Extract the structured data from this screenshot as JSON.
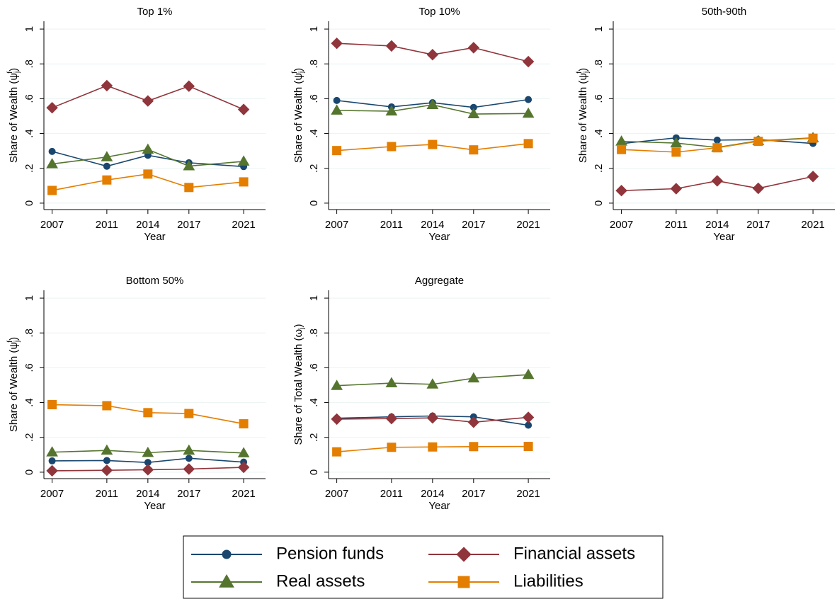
{
  "chart_data": [
    {
      "type": "line",
      "title": "Top 1%",
      "xlabel": "Year",
      "ylabel": {
        "text": "Share of Wealth (ψ",
        "sub": "j",
        "sup": "f",
        "end": ")"
      },
      "x": [
        2007,
        2011,
        2014,
        2017,
        2021
      ],
      "xlim": [
        2006.4,
        2022.6
      ],
      "xticks": [
        2007,
        2011,
        2014,
        2017,
        2021
      ],
      "ylim": [
        -0.037,
        1.045
      ],
      "yticks": [
        0,
        {
          "value": 0.2,
          "label": ".2"
        },
        {
          "value": 0.4,
          "label": ".4"
        },
        {
          "value": 0.6,
          "label": ".6"
        },
        {
          "value": 0.8,
          "label": ".8"
        },
        1
      ],
      "grid": true,
      "series": [
        {
          "name": "Pension funds",
          "color": "#1a476f",
          "marker": "circle",
          "values": [
            0.297,
            0.212,
            0.275,
            0.232,
            0.21
          ]
        },
        {
          "name": "Financial assets",
          "color": "#90353b",
          "marker": "diamond",
          "values": [
            0.548,
            0.675,
            0.587,
            0.672,
            0.538
          ]
        },
        {
          "name": "Real assets",
          "color": "#55752f",
          "marker": "triangle",
          "values": [
            0.225,
            0.265,
            0.308,
            0.213,
            0.24
          ]
        },
        {
          "name": "Liabilities",
          "color": "#e37e00",
          "marker": "square",
          "values": [
            0.073,
            0.133,
            0.167,
            0.09,
            0.122
          ]
        }
      ]
    },
    {
      "type": "line",
      "title": "Top 10%",
      "xlabel": "Year",
      "ylabel": {
        "text": "Share of Wealth (ψ",
        "sub": "j",
        "sup": "f",
        "end": ")"
      },
      "x": [
        2007,
        2011,
        2014,
        2017,
        2021
      ],
      "xlim": [
        2006.4,
        2022.6
      ],
      "xticks": [
        2007,
        2011,
        2014,
        2017,
        2021
      ],
      "ylim": [
        -0.037,
        1.045
      ],
      "yticks": [
        0,
        {
          "value": 0.2,
          "label": ".2"
        },
        {
          "value": 0.4,
          "label": ".4"
        },
        {
          "value": 0.6,
          "label": ".6"
        },
        {
          "value": 0.8,
          "label": ".8"
        },
        1
      ],
      "grid": true,
      "series": [
        {
          "values": [
            0.59,
            0.553,
            0.577,
            0.55,
            0.595
          ]
        },
        {
          "values": [
            0.918,
            0.903,
            0.853,
            0.893,
            0.813
          ]
        },
        {
          "values": [
            0.533,
            0.528,
            0.565,
            0.512,
            0.515
          ]
        },
        {
          "values": [
            0.302,
            0.325,
            0.337,
            0.306,
            0.342
          ]
        }
      ]
    },
    {
      "type": "line",
      "title": "50th-90th",
      "xlabel": "Year",
      "ylabel": {
        "text": "Share of Wealth (ψ",
        "sub": "j",
        "sup": "f",
        "end": ")"
      },
      "x": [
        2007,
        2011,
        2014,
        2017,
        2021
      ],
      "xlim": [
        2006.4,
        2022.6
      ],
      "xticks": [
        2007,
        2011,
        2014,
        2017,
        2021
      ],
      "ylim": [
        -0.037,
        1.045
      ],
      "yticks": [
        0,
        {
          "value": 0.2,
          "label": ".2"
        },
        {
          "value": 0.4,
          "label": ".4"
        },
        {
          "value": 0.6,
          "label": ".6"
        },
        {
          "value": 0.8,
          "label": ".8"
        },
        1
      ],
      "grid": true,
      "series": [
        {
          "values": [
            0.342,
            0.375,
            0.362,
            0.365,
            0.343
          ]
        },
        {
          "values": [
            0.072,
            0.083,
            0.128,
            0.085,
            0.153
          ]
        },
        {
          "values": [
            0.355,
            0.345,
            0.32,
            0.358,
            0.375
          ]
        },
        {
          "values": [
            0.308,
            0.293,
            0.318,
            0.355,
            0.373
          ]
        }
      ]
    },
    {
      "type": "line",
      "title": "Bottom 50%",
      "xlabel": "Year",
      "ylabel": {
        "text": "Share of Wealth (ψ",
        "sub": "j",
        "sup": "f",
        "end": ")"
      },
      "x": [
        2007,
        2011,
        2014,
        2017,
        2021
      ],
      "xlim": [
        2006.4,
        2022.6
      ],
      "xticks": [
        2007,
        2011,
        2014,
        2017,
        2021
      ],
      "ylim": [
        -0.037,
        1.045
      ],
      "yticks": [
        0,
        {
          "value": 0.2,
          "label": ".2"
        },
        {
          "value": 0.4,
          "label": ".4"
        },
        {
          "value": 0.6,
          "label": ".6"
        },
        {
          "value": 0.8,
          "label": ".8"
        },
        1
      ],
      "grid": true,
      "series": [
        {
          "values": [
            0.065,
            0.067,
            0.056,
            0.08,
            0.058
          ]
        },
        {
          "values": [
            0.008,
            0.011,
            0.014,
            0.018,
            0.028
          ]
        },
        {
          "values": [
            0.115,
            0.125,
            0.112,
            0.125,
            0.11
          ]
        },
        {
          "values": [
            0.388,
            0.382,
            0.342,
            0.337,
            0.278
          ]
        }
      ]
    },
    {
      "type": "line",
      "title": "Aggregate",
      "xlabel": "Year",
      "ylabel": {
        "text": "Share of Total Wealth (ω",
        "sub": "j",
        "end": ")"
      },
      "x": [
        2007,
        2011,
        2014,
        2017,
        2021
      ],
      "xlim": [
        2006.4,
        2022.6
      ],
      "xticks": [
        2007,
        2011,
        2014,
        2017,
        2021
      ],
      "ylim": [
        -0.037,
        1.045
      ],
      "yticks": [
        0,
        {
          "value": 0.2,
          "label": ".2"
        },
        {
          "value": 0.4,
          "label": ".4"
        },
        {
          "value": 0.6,
          "label": ".6"
        },
        {
          "value": 0.8,
          "label": ".8"
        },
        1
      ],
      "grid": true,
      "series": [
        {
          "values": [
            0.31,
            0.318,
            0.323,
            0.318,
            0.27
          ]
        },
        {
          "values": [
            0.305,
            0.308,
            0.312,
            0.287,
            0.315
          ]
        },
        {
          "values": [
            0.497,
            0.512,
            0.505,
            0.54,
            0.56
          ]
        },
        {
          "values": [
            0.117,
            0.143,
            0.145,
            0.147,
            0.148
          ]
        }
      ]
    }
  ],
  "legend": "bottom"
}
